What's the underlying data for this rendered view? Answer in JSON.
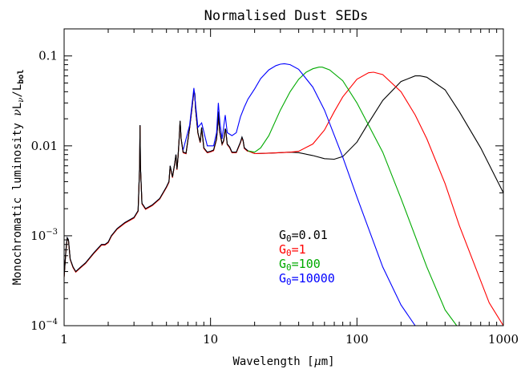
{
  "chart_data": {
    "type": "line",
    "title": "Normalised Dust SEDs",
    "xlabel": {
      "prefix": "Wavelength [",
      "mu": "μ",
      "suffix": "m]"
    },
    "ylabel": {
      "prefix": "Monochromatic luminosity ",
      "nu": "ν",
      "L1": "L",
      "sub_nu": "ν",
      "slash": "/",
      "L2": "L",
      "sub_bol": "bol"
    },
    "x_scale": "log",
    "y_scale": "log",
    "xlim": [
      1,
      1000
    ],
    "ylim": [
      0.0001,
      0.2
    ],
    "x_ticks": [
      {
        "value": 1,
        "label": "1"
      },
      {
        "value": 10,
        "label": "10"
      },
      {
        "value": 100,
        "label": "100"
      },
      {
        "value": 1000,
        "label": "1000"
      }
    ],
    "y_ticks": [
      {
        "value": 0.1,
        "label": "0.1"
      },
      {
        "value": 0.01,
        "label": "0.01"
      },
      {
        "value": 0.001,
        "base": "10",
        "exp": "−3"
      },
      {
        "value": 0.0001,
        "base": "10",
        "exp": "−4"
      }
    ],
    "grid": false,
    "legend_position": "center-right",
    "series": [
      {
        "legend": {
          "symbol": "G",
          "sub": "0",
          "value": "=0.01"
        },
        "color": "#000000",
        "x": [
          18,
          20,
          25,
          30,
          35,
          40,
          50,
          60,
          70,
          80,
          100,
          120,
          150,
          200,
          250,
          270,
          300,
          400,
          500,
          700,
          1000
        ],
        "y": [
          0.0088,
          0.0082,
          0.0083,
          0.0084,
          0.0085,
          0.0084,
          0.0078,
          0.0072,
          0.0071,
          0.0076,
          0.011,
          0.018,
          0.032,
          0.052,
          0.06,
          0.06,
          0.058,
          0.042,
          0.024,
          0.0095,
          0.003
        ]
      },
      {
        "legend": {
          "symbol": "G",
          "sub": "0",
          "value": "=1"
        },
        "color": "#ff0000",
        "x": [
          18,
          20,
          25,
          30,
          35,
          40,
          50,
          60,
          70,
          80,
          100,
          120,
          130,
          150,
          200,
          250,
          300,
          400,
          500,
          800,
          1000
        ],
        "y": [
          0.0088,
          0.0082,
          0.0083,
          0.0084,
          0.0085,
          0.0087,
          0.0105,
          0.015,
          0.024,
          0.035,
          0.055,
          0.065,
          0.066,
          0.062,
          0.04,
          0.022,
          0.012,
          0.0038,
          0.0013,
          0.00018,
          7e-05
        ]
      },
      {
        "legend": {
          "symbol": "G",
          "sub": "0",
          "value": "=100"
        },
        "color": "#00aa00",
        "x": [
          18,
          20,
          22,
          25,
          30,
          35,
          40,
          45,
          50,
          55,
          58,
          65,
          80,
          100,
          150,
          200,
          300,
          400,
          480
        ],
        "y": [
          0.0088,
          0.0085,
          0.0095,
          0.013,
          0.025,
          0.04,
          0.055,
          0.066,
          0.072,
          0.075,
          0.075,
          0.07,
          0.053,
          0.03,
          0.0085,
          0.0026,
          0.00045,
          0.00015,
          0.0001
        ]
      },
      {
        "legend": {
          "symbol": "G",
          "sub": "0",
          "value": "=10000"
        },
        "color": "#0000ff",
        "x": [
          17,
          18,
          20,
          22,
          25,
          28,
          30,
          32,
          35,
          40,
          50,
          60,
          80,
          100,
          150,
          200,
          250
        ],
        "y": [
          0.027,
          0.033,
          0.043,
          0.056,
          0.07,
          0.078,
          0.081,
          0.082,
          0.08,
          0.071,
          0.045,
          0.025,
          0.0075,
          0.0027,
          0.00045,
          0.00017,
          0.0001
        ]
      }
    ],
    "shared_curve": {
      "description_color": "#2a2a5a",
      "x": [
        1.0,
        1.03,
        1.05,
        1.07,
        1.1,
        1.15,
        1.2,
        1.3,
        1.4,
        1.6,
        1.8,
        1.9,
        2.0,
        2.1,
        2.3,
        2.6,
        3.0,
        3.2,
        3.28,
        3.3,
        3.32,
        3.4,
        3.6,
        4.0,
        4.5,
        5.0,
        5.2,
        5.3,
        5.5,
        5.7,
        5.8,
        5.9,
        6.0,
        6.1,
        6.2,
        6.3,
        6.5,
        6.8,
        7.2,
        7.5,
        7.7,
        7.8,
        7.9,
        8.2,
        8.5,
        8.7,
        9.0,
        9.5,
        10.0,
        10.5,
        11.0,
        11.2,
        11.3,
        11.5,
        12.0,
        12.3,
        12.6,
        12.7,
        13.0,
        13.5,
        14.0,
        15.0,
        16.0,
        16.4,
        16.7,
        17.0,
        18.0
      ],
      "y": [
        0.00035,
        0.0007,
        0.00095,
        0.0009,
        0.00055,
        0.00045,
        0.0004,
        0.00045,
        0.0005,
        0.00065,
        0.0008,
        0.0008,
        0.00085,
        0.001,
        0.0012,
        0.0014,
        0.0016,
        0.0019,
        0.006,
        0.017,
        0.006,
        0.0023,
        0.002,
        0.0022,
        0.0026,
        0.0035,
        0.004,
        0.006,
        0.0045,
        0.0065,
        0.008,
        0.0055,
        0.0075,
        0.012,
        0.019,
        0.012,
        0.0085,
        0.0083,
        0.016,
        0.028,
        0.041,
        0.038,
        0.026,
        0.014,
        0.011,
        0.016,
        0.0095,
        0.0085,
        0.0087,
        0.009,
        0.012,
        0.018,
        0.024,
        0.015,
        0.0105,
        0.0115,
        0.0155,
        0.015,
        0.0105,
        0.0097,
        0.0085,
        0.0085,
        0.011,
        0.0125,
        0.0115,
        0.0095,
        0.0088
      ],
      "colors": [
        "#0000ff",
        "#00aa00",
        "#ff0000",
        "#000000"
      ]
    },
    "blue_shoulder": {
      "x": [
        6.5,
        7.2,
        7.7,
        8.2,
        8.7,
        9.5,
        10.5,
        11.0,
        11.3,
        11.6,
        12.0,
        12.6,
        13.0,
        14.0,
        15.0,
        16.0,
        17.0
      ],
      "y": [
        0.009,
        0.017,
        0.044,
        0.016,
        0.018,
        0.01,
        0.01,
        0.014,
        0.03,
        0.018,
        0.012,
        0.022,
        0.014,
        0.013,
        0.014,
        0.021,
        0.027
      ]
    }
  }
}
